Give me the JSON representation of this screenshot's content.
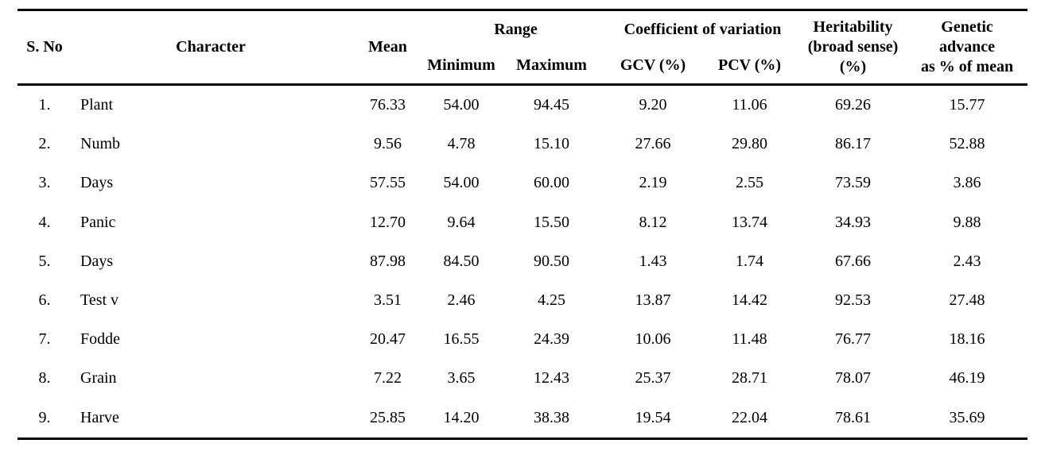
{
  "page": {
    "background_color": "#ffffff",
    "text_color": "#000000"
  },
  "table": {
    "header": {
      "s_no": "S. No",
      "character": "Character",
      "mean": "Mean",
      "range": "Range",
      "minimum": "Minimum",
      "maximum": "Maximum",
      "coefficient_of_variation": "Coefficient of variation",
      "gcv": "GCV (%)",
      "pcv": "PCV (%)",
      "heritability": "Heritability\n(broad sense)\n(%)",
      "genetic_advance": "Genetic\nadvance\nas % of mean"
    },
    "rows": [
      {
        "s_no": "1.",
        "character": "Plant",
        "mean": "76.33",
        "minimum": "54.00",
        "maximum": "94.45",
        "gcv": "9.20",
        "pcv": "11.06",
        "heritability": "69.26",
        "genetic_advance": "15.77"
      },
      {
        "s_no": "2.",
        "character": "Numb",
        "mean": "9.56",
        "minimum": "4.78",
        "maximum": "15.10",
        "gcv": "27.66",
        "pcv": "29.80",
        "heritability": "86.17",
        "genetic_advance": "52.88"
      },
      {
        "s_no": "3.",
        "character": "Days",
        "mean": "57.55",
        "minimum": "54.00",
        "maximum": "60.00",
        "gcv": "2.19",
        "pcv": "2.55",
        "heritability": "73.59",
        "genetic_advance": "3.86"
      },
      {
        "s_no": "4.",
        "character": "Panic",
        "mean": "12.70",
        "minimum": "9.64",
        "maximum": "15.50",
        "gcv": "8.12",
        "pcv": "13.74",
        "heritability": "34.93",
        "genetic_advance": "9.88"
      },
      {
        "s_no": "5.",
        "character": "Days",
        "mean": "87.98",
        "minimum": "84.50",
        "maximum": "90.50",
        "gcv": "1.43",
        "pcv": "1.74",
        "heritability": "67.66",
        "genetic_advance": "2.43"
      },
      {
        "s_no": "6.",
        "character": "Test v",
        "mean": "3.51",
        "minimum": "2.46",
        "maximum": "4.25",
        "gcv": "13.87",
        "pcv": "14.42",
        "heritability": "92.53",
        "genetic_advance": "27.48"
      },
      {
        "s_no": "7.",
        "character": "Fodde",
        "mean": "20.47",
        "minimum": "16.55",
        "maximum": "24.39",
        "gcv": "10.06",
        "pcv": "11.48",
        "heritability": "76.77",
        "genetic_advance": "18.16"
      },
      {
        "s_no": "8.",
        "character": "Grain",
        "mean": "7.22",
        "minimum": "3.65",
        "maximum": "12.43",
        "gcv": "25.37",
        "pcv": "28.71",
        "heritability": "78.07",
        "genetic_advance": "46.19"
      },
      {
        "s_no": "9.",
        "character": "Harve",
        "mean": "25.85",
        "minimum": "14.20",
        "maximum": "38.38",
        "gcv": "19.54",
        "pcv": "22.04",
        "heritability": "78.61",
        "genetic_advance": "35.69"
      }
    ]
  }
}
